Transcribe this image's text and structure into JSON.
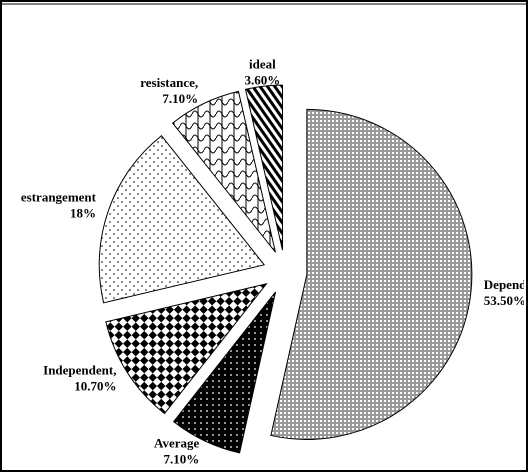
{
  "chart_data": {
    "type": "pie",
    "categories": [
      "Dependent",
      "Average",
      "Independent,",
      "estrangement",
      "resistance,",
      "ideal"
    ],
    "values": [
      53.5,
      7.1,
      10.7,
      18,
      7.1,
      3.6
    ],
    "value_labels": [
      "53.50%",
      "7.10%",
      "10.70%",
      "18%",
      "7.10%",
      "3.60%"
    ],
    "start_angle": 0,
    "direction": "clockwise",
    "exploded": true
  }
}
